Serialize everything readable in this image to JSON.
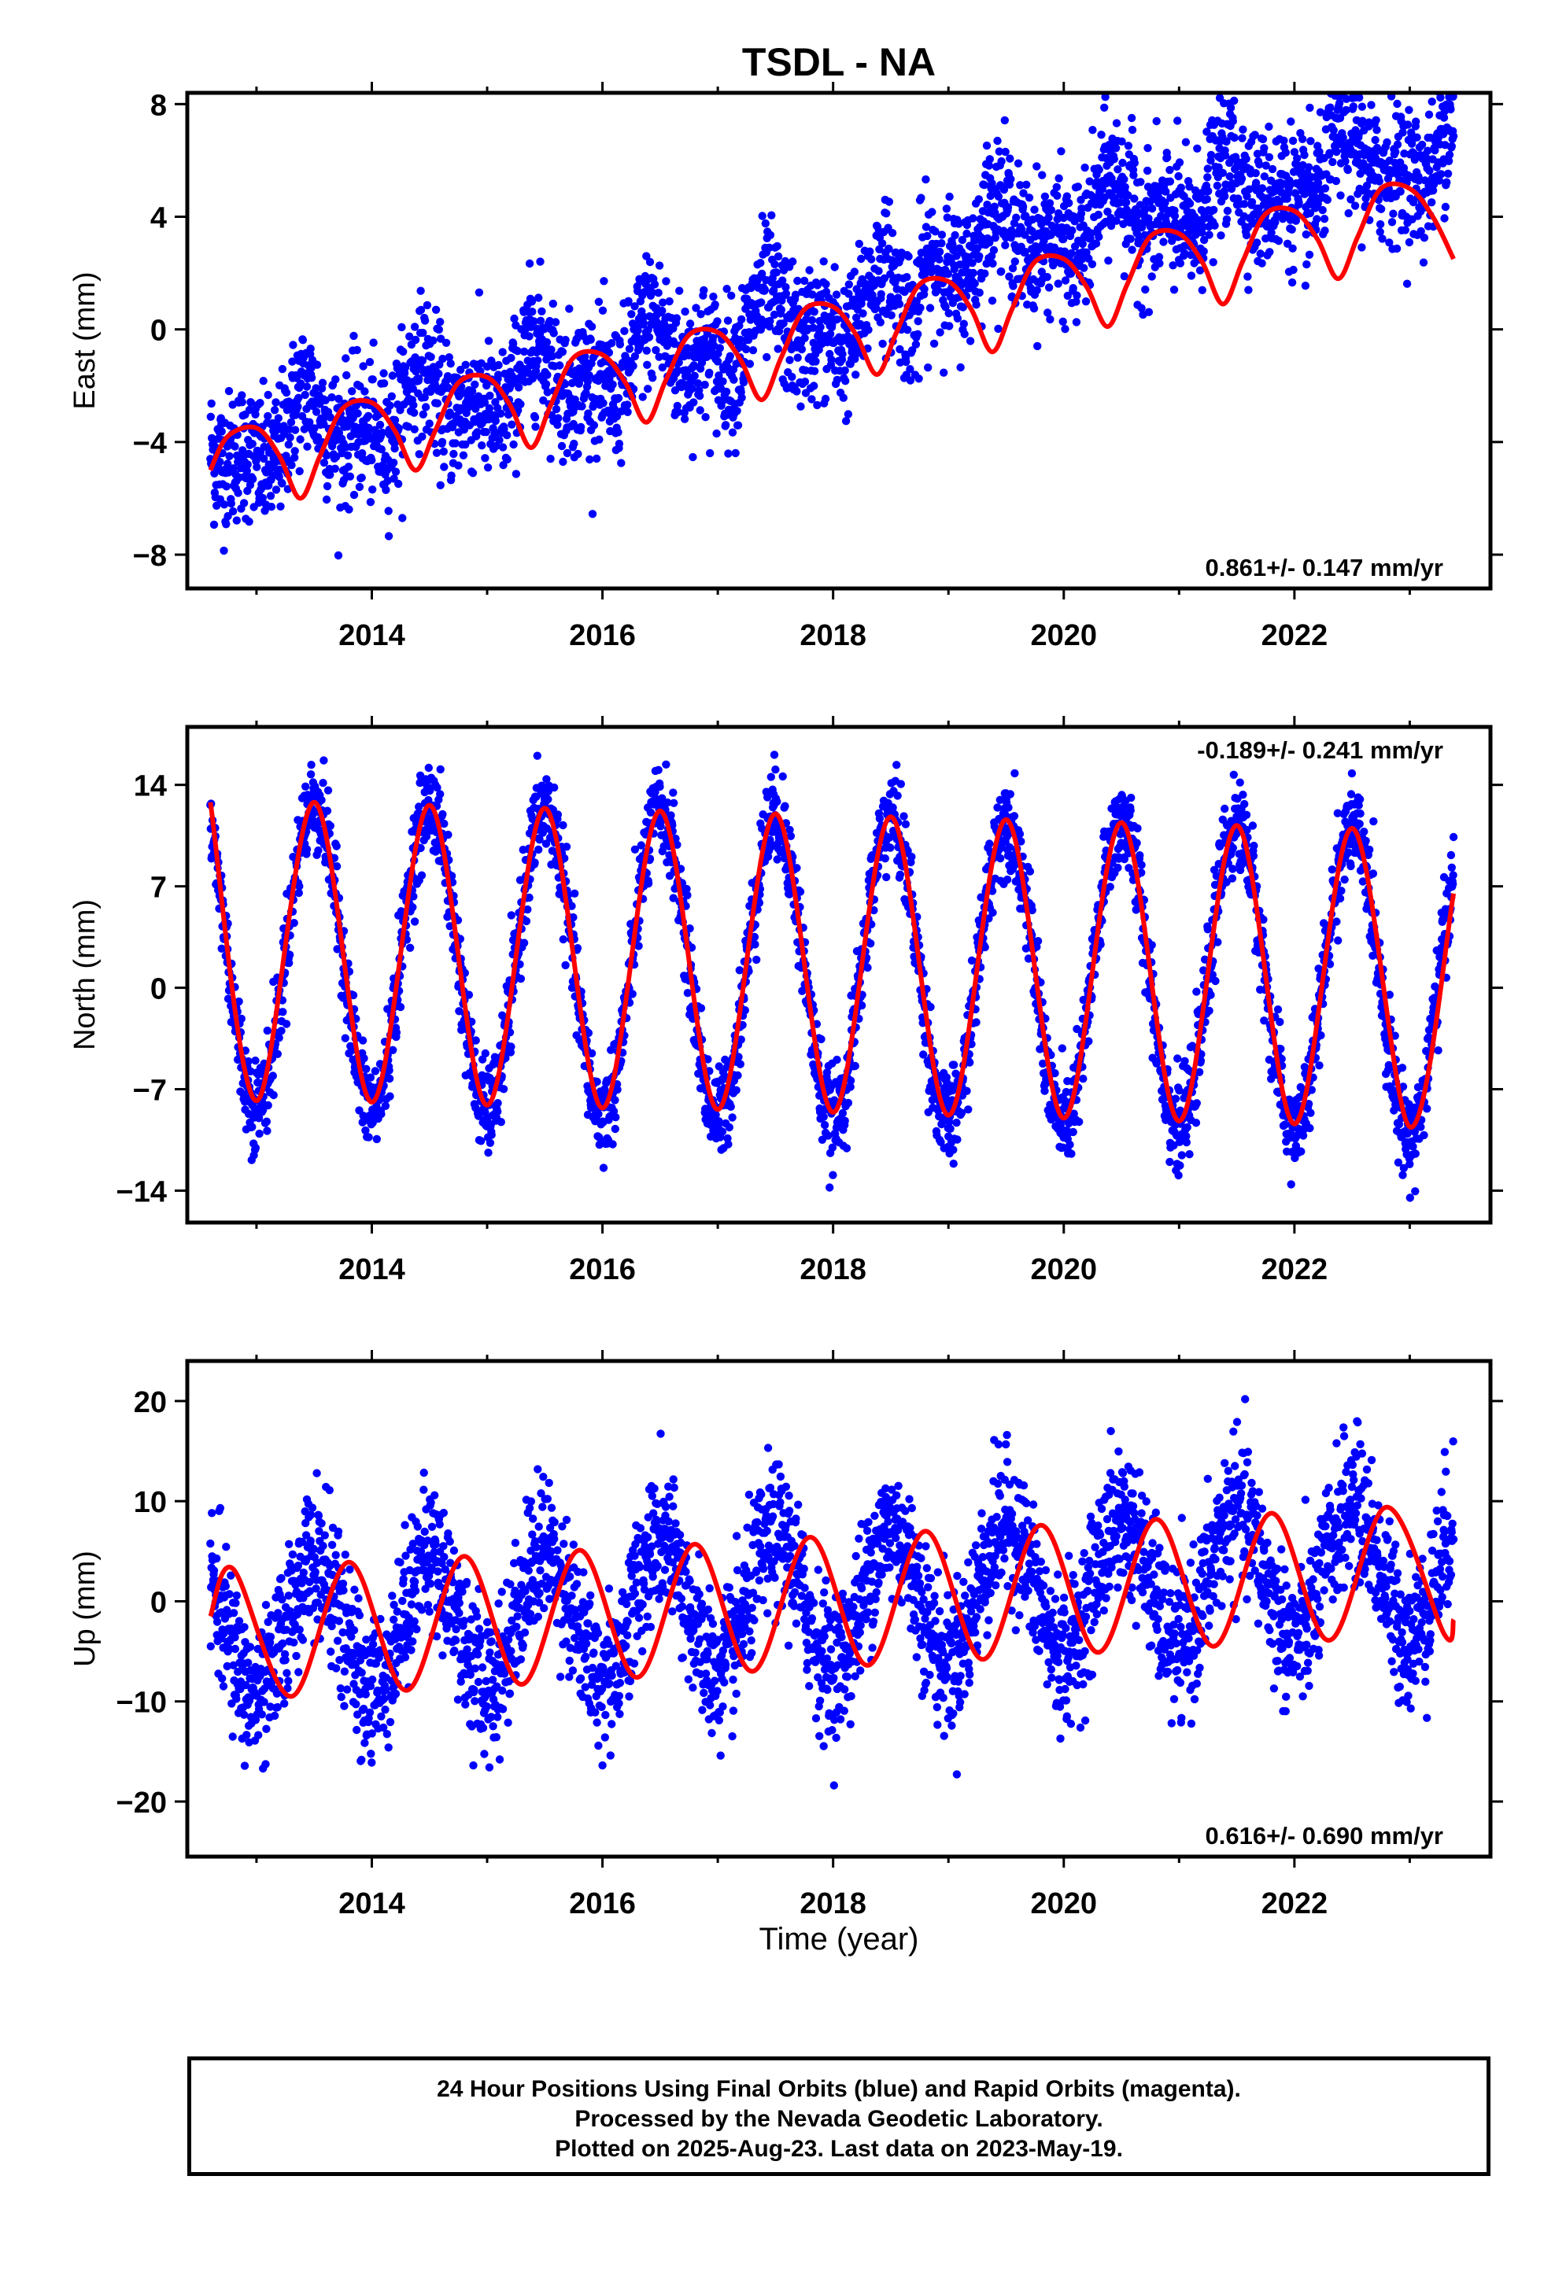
{
  "title": "TSDL - NA",
  "colors": {
    "points": "#0000ff",
    "fit": "#ff0000",
    "axes": "#000000"
  },
  "xlabel": "Time (year)",
  "footer": {
    "line1": "24 Hour Positions Using Final Orbits (blue) and Rapid Orbits (magenta).",
    "line2": "Processed by the Nevada Geodetic Laboratory.",
    "line3": "Plotted on 2025-Aug-23. Last data on 2023-May-19."
  },
  "chart_data": [
    {
      "type": "scatter",
      "panel": "east",
      "ylabel": "East (mm)",
      "xlim": [
        2012.4,
        2023.7
      ],
      "ylim": [
        -9.2,
        8.4
      ],
      "yticks": [
        -8,
        -4,
        0,
        4,
        8
      ],
      "ytick_labels": [
        "−8",
        "−4",
        "0",
        "4",
        "8"
      ],
      "xticks": [
        2014,
        2016,
        2018,
        2020,
        2022
      ],
      "xtick_labels": [
        "2014",
        "2016",
        "2018",
        "2020",
        "2022"
      ],
      "rate_label": "0.861+/- 0.147 mm/yr",
      "rate_position": "bottom-right",
      "data_start": 2012.6,
      "data_end": 2023.38,
      "series": [
        {
          "style": "points",
          "color": "#0000ff",
          "model": {
            "offset_at_start": -4.3,
            "trend_mm_per_yr": 0.86,
            "annual_amp": 0.9,
            "annual_phase": 0.3,
            "semiannual_amp": 0.6,
            "semiannual_phase": 1.2,
            "step_2018_75": 1.5,
            "scatter_sd": 1.2
          }
        },
        {
          "style": "line",
          "color": "#ff0000",
          "x": [
            2012.6,
            2012.75,
            2013.0,
            2013.2,
            2013.38,
            2013.55,
            2013.75,
            2014.0,
            2014.2,
            2014.38,
            2014.55,
            2014.75,
            2015.0,
            2015.2,
            2015.38,
            2015.55,
            2015.75,
            2016.0,
            2016.2,
            2016.38,
            2016.55,
            2016.75,
            2017.0,
            2017.2,
            2017.38,
            2017.55,
            2017.75,
            2018.0,
            2018.2,
            2018.38,
            2018.55,
            2018.75,
            2019.0,
            2019.2,
            2019.38,
            2019.55,
            2019.75,
            2020.0,
            2020.2,
            2020.38,
            2020.55,
            2020.75,
            2021.0,
            2021.2,
            2021.38,
            2021.55,
            2021.75,
            2022.0,
            2022.2,
            2022.38,
            2022.55,
            2022.75,
            2023.0,
            2023.2,
            2023.38
          ],
          "y": [
            -5.0,
            -3.8,
            -3.5,
            -4.5,
            -6.0,
            -4.5,
            -2.8,
            -2.6,
            -3.6,
            -5.0,
            -3.6,
            -1.9,
            -1.7,
            -2.7,
            -4.2,
            -2.7,
            -1.0,
            -0.9,
            -1.9,
            -3.3,
            -1.8,
            -0.2,
            -0.1,
            -1.1,
            -2.5,
            -1.0,
            0.7,
            0.8,
            -0.2,
            -1.6,
            -0.1,
            1.6,
            1.7,
            0.7,
            -0.8,
            0.7,
            2.4,
            2.5,
            1.5,
            0.1,
            1.6,
            3.3,
            3.4,
            2.4,
            0.9,
            2.4,
            4.1,
            4.2,
            3.2,
            1.8,
            3.3,
            5.0,
            5.0,
            4.0,
            2.5
          ]
        }
      ]
    },
    {
      "type": "scatter",
      "panel": "north",
      "ylabel": "North (mm)",
      "xlim": [
        2012.4,
        2023.7
      ],
      "ylim": [
        -16.2,
        18.0
      ],
      "yticks": [
        -14,
        -7,
        0,
        7,
        14
      ],
      "ytick_labels": [
        "−14",
        "−7",
        "0",
        "7",
        "14"
      ],
      "xticks": [
        2014,
        2016,
        2018,
        2020,
        2022
      ],
      "xtick_labels": [
        "2014",
        "2016",
        "2018",
        "2020",
        "2022"
      ],
      "rate_label": "-0.189+/- 0.241 mm/yr",
      "rate_position": "top-right",
      "data_start": 2012.6,
      "data_end": 2023.38,
      "series": [
        {
          "style": "points",
          "color": "#0000ff",
          "model": {
            "offset_at_start": 2.4,
            "trend_mm_per_yr": -0.19,
            "annual_amp": 10.5,
            "annual_phase": 0.0,
            "semiannual_amp": 0.0,
            "semiannual_phase": 0.0,
            "step_2018_75": 0.0,
            "scatter_sd": 1.6
          }
        },
        {
          "style": "line",
          "color": "#ff0000",
          "x": [
            2012.6,
            2013.0,
            2013.5,
            2014.0,
            2014.5,
            2015.0,
            2015.5,
            2016.0,
            2016.5,
            2017.0,
            2017.5,
            2018.0,
            2018.5,
            2019.0,
            2019.5,
            2020.0,
            2020.5,
            2021.0,
            2021.5,
            2022.0,
            2022.5,
            2023.0,
            2023.38
          ],
          "y": [
            12.8,
            -7.8,
            12.8,
            -7.9,
            12.6,
            -8.1,
            12.4,
            -8.3,
            12.2,
            -8.4,
            12.0,
            -8.6,
            11.8,
            -8.8,
            11.6,
            -9.0,
            11.4,
            -9.2,
            11.2,
            -9.4,
            11.0,
            -9.6,
            6.5
          ]
        }
      ]
    },
    {
      "type": "scatter",
      "panel": "up",
      "ylabel": "Up (mm)",
      "xlim": [
        2012.4,
        2023.7
      ],
      "ylim": [
        -25.5,
        24.0
      ],
      "yticks": [
        -20,
        -10,
        0,
        10,
        20
      ],
      "ytick_labels": [
        "−20",
        "−10",
        "0",
        "10",
        "20"
      ],
      "xticks": [
        2014,
        2016,
        2018,
        2020,
        2022
      ],
      "xtick_labels": [
        "2014",
        "2016",
        "2018",
        "2020",
        "2022"
      ],
      "rate_label": "0.616+/- 0.690 mm/yr",
      "rate_position": "bottom-right",
      "data_start": 2012.6,
      "data_end": 2023.38,
      "series": [
        {
          "style": "points",
          "color": "#0000ff",
          "model": {
            "offset_at_start": -3.2,
            "trend_mm_per_yr": 0.62,
            "annual_amp": 6.6,
            "annual_phase": 0.0,
            "semiannual_amp": 0.0,
            "semiannual_phase": 0.0,
            "step_2018_75": 0.0,
            "scatter_sd": 3.6
          }
        },
        {
          "style": "line",
          "color": "#ff0000",
          "x": [
            2012.6,
            2012.8,
            2013.3,
            2013.8,
            2014.3,
            2014.8,
            2015.3,
            2015.8,
            2016.3,
            2016.8,
            2017.3,
            2017.8,
            2018.3,
            2018.8,
            2019.3,
            2019.8,
            2020.3,
            2020.8,
            2021.3,
            2021.8,
            2022.3,
            2022.8,
            2023.3,
            2023.38
          ],
          "y": [
            -1.5,
            3.2,
            -9.5,
            3.9,
            -8.9,
            4.5,
            -8.3,
            5.1,
            -7.6,
            5.7,
            -7.0,
            6.4,
            -6.4,
            7.0,
            -5.8,
            7.6,
            -5.1,
            8.2,
            -4.5,
            8.8,
            -3.9,
            9.4,
            -3.3,
            -1.8
          ]
        }
      ]
    }
  ]
}
